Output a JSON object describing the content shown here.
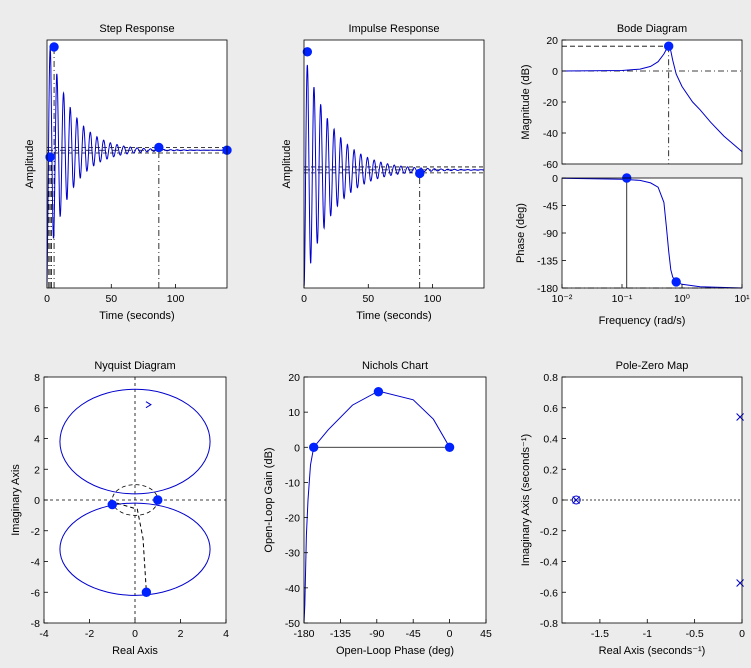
{
  "figure": {
    "background": "#ececec",
    "axes_color": "#ffffff",
    "line_color": "#0000cc",
    "marker_color": "#0022ff"
  },
  "chart_data": [
    {
      "id": "step",
      "type": "line",
      "title": "Step Response",
      "xlabel": "Time (seconds)",
      "ylabel": "Amplitude",
      "xlim": [
        0,
        140
      ],
      "ylim": [
        0,
        1.8
      ],
      "xticks": [
        0,
        50,
        100
      ],
      "yticks": [],
      "signal": {
        "kind": "step",
        "final": 1.0,
        "amp": 0.85,
        "period": 5.2,
        "tau": 18,
        "t_end": 140
      },
      "markers": [
        {
          "x": 5.5,
          "y": 1.75
        },
        {
          "x": 2.4,
          "y": 0.95
        },
        {
          "x": 87,
          "y": 1.02
        },
        {
          "x": 140,
          "y": 1.0
        }
      ],
      "hlines": [
        1.02,
        0.98,
        1.0
      ],
      "vlines": [
        1.4,
        2.4,
        3.4,
        5.5,
        87
      ]
    },
    {
      "id": "impulse",
      "type": "line",
      "title": "Impulse Response",
      "xlabel": "Time (seconds)",
      "ylabel": "Amplitude",
      "xlim": [
        0,
        140
      ],
      "ylim": [
        -1.0,
        1.1
      ],
      "xticks": [
        0,
        50,
        100
      ],
      "yticks": [],
      "signal": {
        "kind": "impulse",
        "final": 0.0,
        "amp": 1.0,
        "period": 5.2,
        "tau": 22,
        "t_end": 140
      },
      "markers": [
        {
          "x": 2.6,
          "y": 1.0
        },
        {
          "x": 90,
          "y": -0.03
        }
      ],
      "hlines": [
        0.025,
        -0.025,
        0.0
      ],
      "vlines": [
        90
      ]
    },
    {
      "id": "bode",
      "type": "line",
      "title": "Bode Diagram",
      "xlabel": "Frequency  (rad/s)",
      "log_x": true,
      "xlim": [
        0.01,
        10
      ],
      "xticks": [
        0.01,
        0.1,
        1,
        10
      ],
      "xtick_labels": [
        "10⁻²",
        "10⁻¹",
        "10⁰",
        "10¹"
      ],
      "magnitude": {
        "ylabel": "Magnitude (dB)",
        "ylim": [
          -60,
          20
        ],
        "yticks": [
          -60,
          -40,
          -20,
          0,
          20
        ],
        "points": [
          [
            0.01,
            0
          ],
          [
            0.1,
            0.3
          ],
          [
            0.2,
            1.2
          ],
          [
            0.3,
            3
          ],
          [
            0.4,
            6
          ],
          [
            0.5,
            11
          ],
          [
            0.55,
            14
          ],
          [
            0.6,
            16
          ],
          [
            0.65,
            13
          ],
          [
            0.7,
            7
          ],
          [
            0.8,
            -2
          ],
          [
            1,
            -10
          ],
          [
            1.5,
            -20
          ],
          [
            2,
            -25
          ],
          [
            3,
            -33
          ],
          [
            5,
            -42
          ],
          [
            10,
            -52
          ]
        ],
        "markers": [
          {
            "x": 0.6,
            "y": 16
          }
        ],
        "hline_dashed": 16,
        "vline_dashdot": 0.6,
        "ref_hline_dashdot": 0
      },
      "phase": {
        "ylabel": "Phase (deg)",
        "ylim": [
          -180,
          0
        ],
        "yticks": [
          -180,
          -135,
          -90,
          -45,
          0
        ],
        "points": [
          [
            0.01,
            -0.5
          ],
          [
            0.1,
            -2
          ],
          [
            0.2,
            -4
          ],
          [
            0.3,
            -8
          ],
          [
            0.4,
            -15
          ],
          [
            0.5,
            -40
          ],
          [
            0.55,
            -80
          ],
          [
            0.6,
            -120
          ],
          [
            0.65,
            -150
          ],
          [
            0.7,
            -162
          ],
          [
            0.8,
            -170
          ],
          [
            1,
            -174
          ],
          [
            2,
            -178
          ],
          [
            10,
            -180
          ]
        ],
        "markers": [
          {
            "x": 0.12,
            "y": 0
          },
          {
            "x": 0.8,
            "y": -170
          }
        ],
        "vline": 0.12
      }
    },
    {
      "id": "nyquist",
      "type": "line",
      "title": "Nyquist Diagram",
      "xlabel": "Real Axis",
      "ylabel": "Imaginary Axis",
      "xlim": [
        -4,
        4
      ],
      "ylim": [
        -8,
        8
      ],
      "xticks": [
        -4,
        -2,
        0,
        2,
        4
      ],
      "yticks": [
        -8,
        -6,
        -4,
        -2,
        0,
        2,
        4,
        6,
        8
      ],
      "upper_loop": {
        "cx": 0,
        "cy": 3.8,
        "rx": 3.3,
        "ry": 3.4
      },
      "lower_loop": {
        "cx": 0,
        "cy": -3.2,
        "rx": 3.3,
        "ry": 3.0
      },
      "unit_circle": {
        "cx": 0,
        "cy": 0,
        "r": 1
      },
      "markers": [
        {
          "x": -1.0,
          "y": -0.3
        },
        {
          "x": 1.0,
          "y": 0.0
        },
        {
          "x": 0.5,
          "y": -6.0
        }
      ],
      "dashed_path": [
        [
          -0.8,
          -0.2
        ],
        [
          0.1,
          -0.6
        ],
        [
          0.35,
          -2.5
        ],
        [
          0.5,
          -6.0
        ]
      ],
      "arrow": {
        "x": 0.7,
        "y": 6.2
      }
    },
    {
      "id": "nichols",
      "type": "line",
      "title": "Nichols Chart",
      "xlabel": "Open-Loop Phase (deg)",
      "ylabel": "Open-Loop Gain (dB)",
      "xlim": [
        -180,
        45
      ],
      "ylim": [
        -50,
        20
      ],
      "xticks": [
        -180,
        -135,
        -90,
        -45,
        0,
        45
      ],
      "yticks": [
        -50,
        -40,
        -30,
        -20,
        -10,
        0,
        10,
        20
      ],
      "points": [
        [
          0,
          0
        ],
        [
          -20,
          8
        ],
        [
          -45,
          13.5
        ],
        [
          -88,
          16
        ],
        [
          -120,
          12
        ],
        [
          -150,
          5
        ],
        [
          -168,
          0
        ],
        [
          -172,
          -5
        ],
        [
          -175,
          -15
        ],
        [
          -177,
          -25
        ],
        [
          -178,
          -35
        ],
        [
          -179,
          -45
        ],
        [
          -180,
          -50
        ]
      ],
      "markers": [
        {
          "x": 0,
          "y": 0
        },
        {
          "x": -88,
          "y": 15.8
        },
        {
          "x": -168,
          "y": 0
        }
      ],
      "hline": {
        "x0": -168,
        "x1": 0,
        "y": 0
      }
    },
    {
      "id": "pzmap",
      "type": "scatter",
      "title": "Pole-Zero Map",
      "xlabel": "Real Axis (seconds⁻¹)",
      "ylabel": "Imaginary Axis (seconds⁻¹)",
      "xlim": [
        -1.9,
        0
      ],
      "ylim": [
        -0.8,
        0.8
      ],
      "xticks": [
        -1.5,
        -1,
        -0.5,
        0
      ],
      "yticks": [
        -0.8,
        -0.6,
        -0.4,
        -0.2,
        0,
        0.2,
        0.4,
        0.6,
        0.8
      ],
      "poles": [
        {
          "x": -0.02,
          "y": 0.54
        },
        {
          "x": -0.02,
          "y": -0.54
        },
        {
          "x": -1.75,
          "y": 0
        }
      ],
      "zeros": [
        {
          "x": -1.75,
          "y": 0
        }
      ]
    }
  ]
}
